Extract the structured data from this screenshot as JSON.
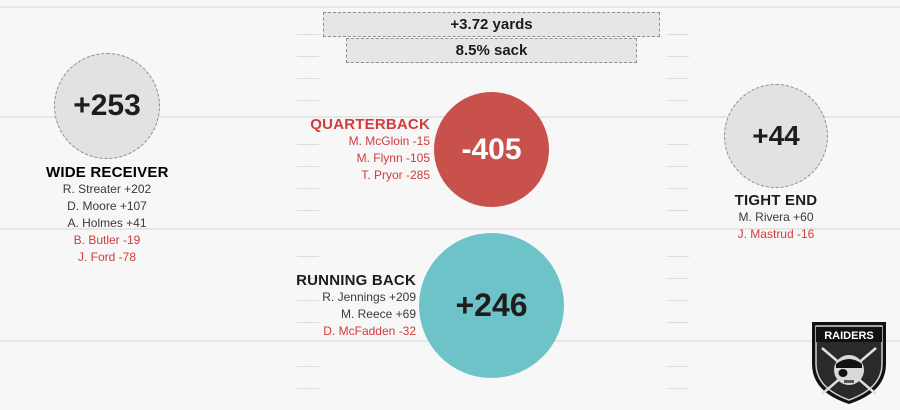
{
  "summary": {
    "yards": "+3.72 yards",
    "sack": "8.5% sack"
  },
  "positions": {
    "wr": {
      "title": "WIDE RECEIVER",
      "total": "+253",
      "players": [
        {
          "text": "R. Streater +202",
          "sign": "pos"
        },
        {
          "text": "D. Moore +107",
          "sign": "pos"
        },
        {
          "text": "A. Holmes +41",
          "sign": "pos"
        },
        {
          "text": "B. Butler -19",
          "sign": "neg"
        },
        {
          "text": "J. Ford -78",
          "sign": "neg"
        }
      ]
    },
    "qb": {
      "title": "QUARTERBACK",
      "total": "-405",
      "players": [
        {
          "text": "M. McGloin -15",
          "sign": "neg"
        },
        {
          "text": "M. Flynn -105",
          "sign": "neg"
        },
        {
          "text": "T. Pryor -285",
          "sign": "neg"
        }
      ]
    },
    "rb": {
      "title": "RUNNING BACK",
      "total": "+246",
      "players": [
        {
          "text": "R. Jennings +209",
          "sign": "pos"
        },
        {
          "text": "M. Reece +69",
          "sign": "pos"
        },
        {
          "text": "D. McFadden -32",
          "sign": "neg"
        }
      ]
    },
    "te": {
      "title": "TIGHT END",
      "total": "+44",
      "players": [
        {
          "text": "M. Rivera +60",
          "sign": "pos"
        },
        {
          "text": "J. Mastrud -16",
          "sign": "neg"
        }
      ]
    }
  },
  "logo": {
    "text": "RAIDERS"
  },
  "colors": {
    "negative": "#d23b3b",
    "positive": "#3a3a3a",
    "qb_circle": "#c8514c",
    "rb_circle": "#6ec3c8",
    "neutral_circle": "#e2e2e2"
  }
}
